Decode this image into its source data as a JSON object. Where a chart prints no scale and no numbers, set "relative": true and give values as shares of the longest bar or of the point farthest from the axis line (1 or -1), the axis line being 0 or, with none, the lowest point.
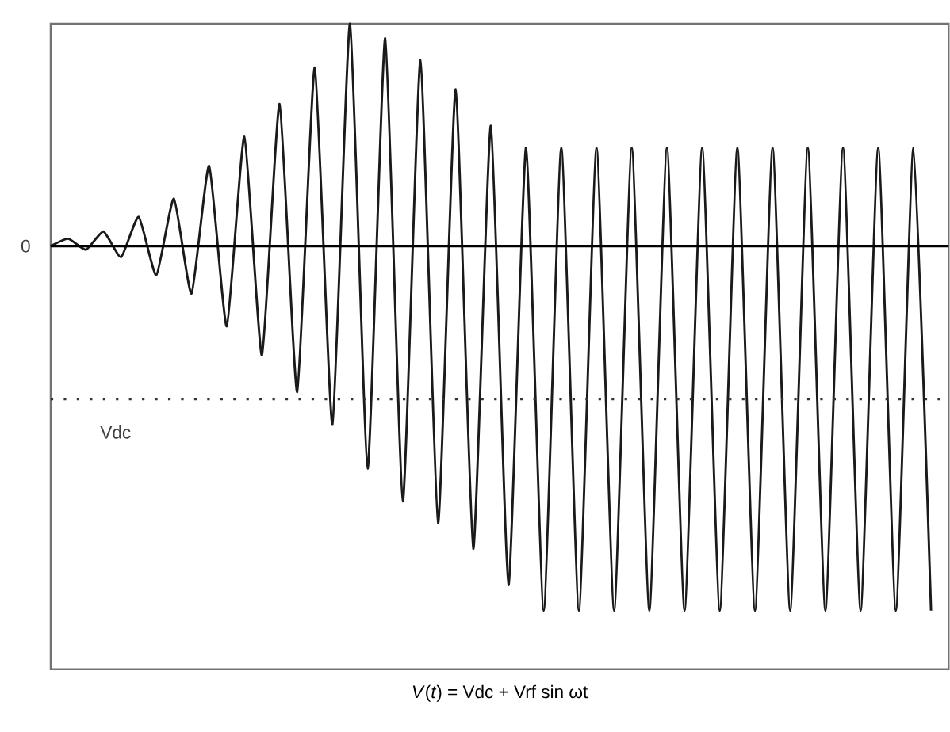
{
  "chart_data": {
    "type": "line",
    "relative": true,
    "xlabel": "*V*(*t*) = Vdc + Vrf sin ωt",
    "categories": [
      null,
      null,
      null,
      null,
      null,
      null,
      null,
      null,
      null,
      null,
      null,
      null,
      null,
      null,
      null,
      null,
      null,
      null,
      null,
      null,
      null,
      null,
      null,
      null,
      null,
      null,
      null,
      null,
      null,
      null,
      null,
      null,
      null,
      null,
      null,
      null,
      null,
      null,
      null,
      null,
      null,
      null,
      null,
      null,
      null,
      null,
      null,
      null,
      null,
      null,
      null,
      null
    ],
    "series": [
      {
        "color": "#1a1a1a",
        "values": [
          0,
          0.02,
          -0.01,
          0.04,
          -0.03,
          0.08,
          -0.08,
          0.13,
          -0.13,
          0.22,
          -0.22,
          0.3,
          -0.3,
          0.39,
          -0.4,
          0.49,
          -0.49,
          0.61,
          -0.61,
          0.57,
          -0.7,
          0.51,
          -0.76,
          0.43,
          -0.83,
          0.33,
          -0.93,
          0.27,
          -1,
          0.27,
          -1,
          0.27,
          -1,
          0.27,
          -1,
          0.27,
          -1,
          0.27,
          -1,
          0.27,
          -1,
          0.27,
          -1,
          0.27,
          -1,
          0.27,
          -1,
          0.27,
          -1,
          0.27,
          -1,
          null
        ]
      }
    ],
    "ref_lines": [
      {
        "axis": "y",
        "value": 0,
        "label": "0",
        "color": "#000000",
        "line_style": "solid"
      },
      {
        "axis": "y",
        "value": -0.42,
        "label": "Vdc",
        "color": "#333333",
        "line_style": "dotted"
      }
    ],
    "marker": "none",
    "line_style": "solid"
  }
}
